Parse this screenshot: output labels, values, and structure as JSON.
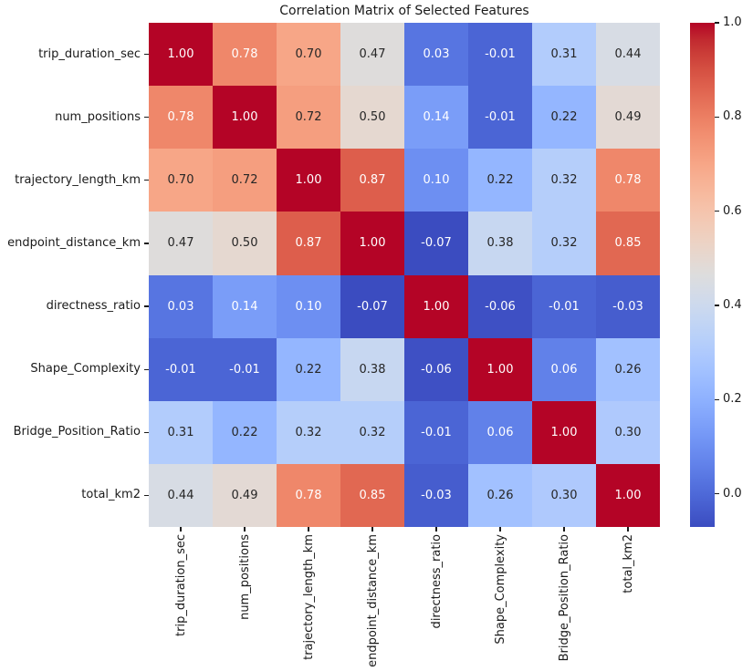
{
  "figure": {
    "background": "#ffffff",
    "axis_text_color": "#1a1a1a"
  },
  "chart_data": {
    "type": "heatmap",
    "title": "Correlation Matrix of Selected Features",
    "labels": [
      "trip_duration_sec",
      "num_positions",
      "trajectory_length_km",
      "endpoint_distance_km",
      "directness_ratio",
      "Shape_Complexity",
      "Bridge_Position_Ratio",
      "total_km2"
    ],
    "matrix": [
      [
        1.0,
        0.78,
        0.7,
        0.47,
        0.03,
        -0.01,
        0.31,
        0.44
      ],
      [
        0.78,
        1.0,
        0.72,
        0.5,
        0.14,
        -0.01,
        0.22,
        0.49
      ],
      [
        0.7,
        0.72,
        1.0,
        0.87,
        0.1,
        0.22,
        0.32,
        0.78
      ],
      [
        0.47,
        0.5,
        0.87,
        1.0,
        -0.07,
        0.38,
        0.32,
        0.85
      ],
      [
        0.03,
        0.14,
        0.1,
        -0.07,
        1.0,
        -0.06,
        -0.01,
        -0.03
      ],
      [
        -0.01,
        -0.01,
        0.22,
        0.38,
        -0.06,
        1.0,
        0.06,
        0.26
      ],
      [
        0.31,
        0.22,
        0.32,
        0.32,
        -0.01,
        0.06,
        1.0,
        0.3
      ],
      [
        0.44,
        0.49,
        0.78,
        0.85,
        -0.03,
        0.26,
        0.3,
        1.0
      ]
    ],
    "annotation_decimals": 2,
    "annotation_text_dark": "#262626",
    "annotation_text_light": "#ffffff",
    "vmin": -0.07,
    "vmax": 1.0,
    "grid": false,
    "colormap": "coolwarm",
    "colormap_low": "#3B4CC0",
    "colormap_mid": "#DDDDDD",
    "colormap_high": "#B40426",
    "colormap_stops": [
      "#3B4CC0",
      "#445ACC",
      "#4D68D7",
      "#5775E1",
      "#6282EA",
      "#6C8EF1",
      "#779AF7",
      "#82A5FB",
      "#8DB0FE",
      "#98B9FF",
      "#A3C2FF",
      "#AEC9FD",
      "#B8D0F9",
      "#C2D5F4",
      "#CCD9EE",
      "#D5DBE6",
      "#DDDDDD",
      "#E5D8D1",
      "#ECD3C5",
      "#F1CCB9",
      "#F5C4AD",
      "#F7BBA0",
      "#F7B194",
      "#F7A687",
      "#F49A7B",
      "#F18D6F",
      "#EC7F63",
      "#E57058",
      "#DE604D",
      "#D55042",
      "#CB3E38",
      "#C0282F",
      "#B40426"
    ],
    "colorbar": {
      "position": "right",
      "ticks": [
        1.0,
        0.8,
        0.6,
        0.4,
        0.2,
        0.0
      ],
      "tick_decimals": 1
    }
  }
}
